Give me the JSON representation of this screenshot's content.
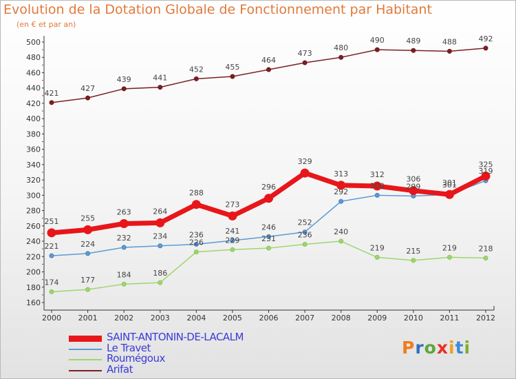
{
  "header": {
    "title": "Evolution de la Dotation Globale de Fonctionnement par Habitant",
    "subtitle": "(en € et par an)"
  },
  "logo": {
    "text": "Proxiti",
    "letter_colors": [
      "#f07c1c",
      "#2f6fc0",
      "#5aa83a",
      "#e8302a",
      "#f0a020",
      "#3a8ad8",
      "#7ab030"
    ]
  },
  "chart_data": {
    "type": "line",
    "title": "Evolution de la Dotation Globale de Fonctionnement par Habitant",
    "subtitle": "(en € et par an)",
    "xlabel": "",
    "ylabel": "",
    "categories": [
      "2000",
      "2001",
      "2002",
      "2003",
      "2004",
      "2005",
      "2006",
      "2007",
      "2008",
      "2009",
      "2010",
      "2011",
      "2012"
    ],
    "ylim": [
      160,
      500
    ],
    "yticks": [
      160,
      180,
      200,
      220,
      240,
      260,
      280,
      300,
      320,
      340,
      360,
      380,
      400,
      420,
      440,
      460,
      480,
      500
    ],
    "grid": false,
    "legend_position": "bottom-left",
    "series": [
      {
        "name": "SAINT-ANTONIN-DE-LACALM",
        "color": "#e8161a",
        "values": [
          251,
          255,
          263,
          264,
          288,
          273,
          296,
          329,
          313,
          312,
          306,
          301,
          325
        ]
      },
      {
        "name": "Le Travet",
        "color": "#5b9bd5",
        "values": [
          221,
          224,
          232,
          234,
          236,
          241,
          246,
          252,
          292,
          300,
          299,
          301,
          319
        ]
      },
      {
        "name": "Roumégoux",
        "color": "#9ed66e",
        "values": [
          174,
          177,
          184,
          186,
          226,
          229,
          231,
          236,
          240,
          219,
          215,
          219,
          218
        ]
      },
      {
        "name": "Arifat",
        "color": "#7b1f25",
        "values": [
          421,
          427,
          439,
          441,
          452,
          455,
          464,
          473,
          480,
          490,
          489,
          488,
          492
        ]
      }
    ]
  }
}
